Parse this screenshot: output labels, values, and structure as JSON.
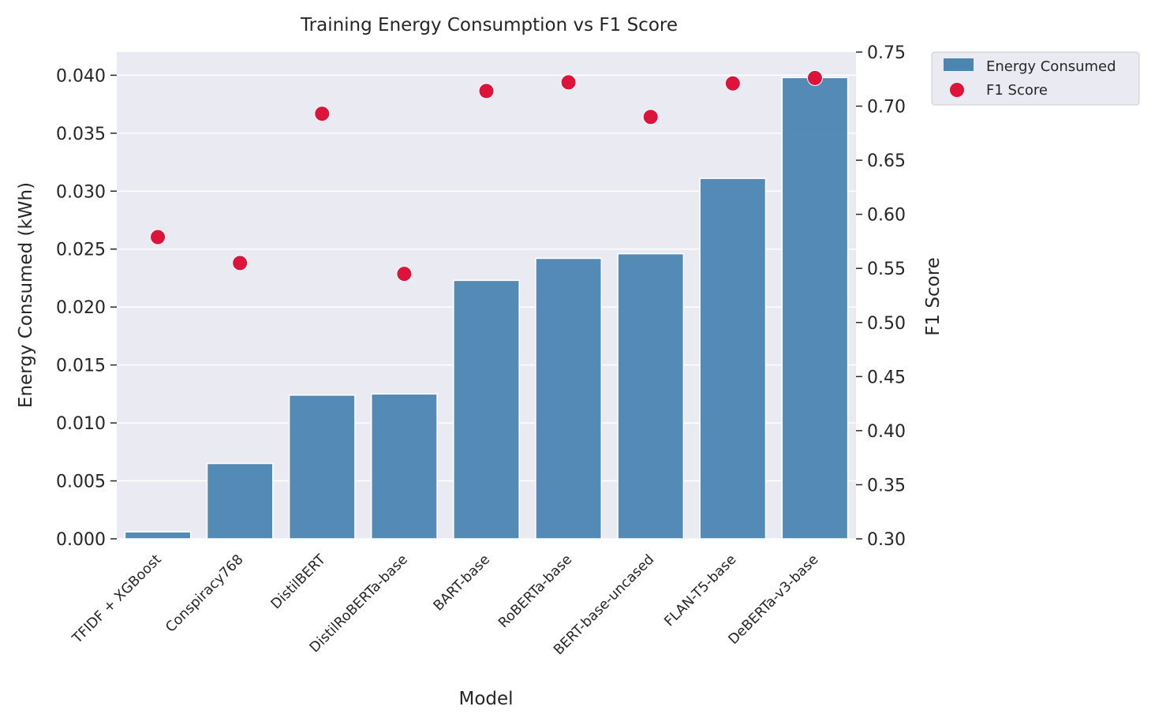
{
  "colors": {
    "bar": "#4c85b2",
    "point": "#dc143c",
    "plot_bg": "#eaeaf2",
    "grid": "#ffffff",
    "text": "#262626"
  },
  "chart_data": {
    "type": "bar",
    "title": "Training Energy Consumption vs F1 Score",
    "xlabel": "Model",
    "ylabel": "Energy Consumed (kWh)",
    "y2label": "F1 Score",
    "categories": [
      "TFIDF + XGBoost",
      "Conspiracy768",
      "DistilBERT",
      "DistilRoBERTa-base",
      "BART-base",
      "RoBERTa-base",
      "BERT-base-uncased",
      "FLAN-T5-base",
      "DeBERTa-v3-base"
    ],
    "ylim": [
      0,
      0.042
    ],
    "y2lim": [
      0.3,
      0.75
    ],
    "yticks": [
      "0.000",
      "0.005",
      "0.010",
      "0.015",
      "0.020",
      "0.025",
      "0.030",
      "0.035",
      "0.040"
    ],
    "y2ticks": [
      "0.30",
      "0.35",
      "0.40",
      "0.45",
      "0.50",
      "0.55",
      "0.60",
      "0.65",
      "0.70",
      "0.75"
    ],
    "grid": true,
    "legend_position": "outside upper right",
    "series": [
      {
        "name": "Energy Consumed",
        "type": "bar",
        "axis": "left",
        "values": [
          0.0006,
          0.0065,
          0.0124,
          0.0125,
          0.0223,
          0.0242,
          0.0246,
          0.0311,
          0.0398
        ]
      },
      {
        "name": "F1 Score",
        "type": "scatter",
        "axis": "right",
        "values": [
          0.579,
          0.555,
          0.693,
          0.545,
          0.714,
          0.722,
          0.69,
          0.721,
          0.726
        ]
      }
    ]
  }
}
